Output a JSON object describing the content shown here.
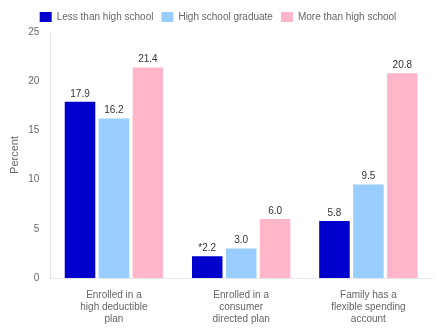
{
  "chart_data": {
    "type": "bar",
    "categories": [
      "Enrolled in a\nhigh deductible\nplan",
      "Enrolled in a\nconsumer\ndirected plan",
      "Family has a\nflexible spending\naccount"
    ],
    "series": [
      {
        "name": "Less than high school",
        "color": "#0000CC",
        "values": [
          17.9,
          2.2,
          5.8
        ],
        "value_labels": [
          "17.9",
          "*2.2",
          "5.8"
        ]
      },
      {
        "name": "High school graduate",
        "color": "#99CCFF",
        "values": [
          16.2,
          3.0,
          9.5
        ],
        "value_labels": [
          "16.2",
          "3.0",
          "9.5"
        ]
      },
      {
        "name": "More than high school",
        "color": "#FFB6C8",
        "values": [
          21.4,
          6.0,
          20.8
        ],
        "value_labels": [
          "21.4",
          "6.0",
          "20.8"
        ]
      }
    ],
    "ylabel": "Percent",
    "ylim": [
      0,
      25
    ],
    "yticks": [
      0,
      5,
      10,
      15,
      20,
      25
    ],
    "grid": false,
    "legend": "top",
    "data_labels": true
  }
}
